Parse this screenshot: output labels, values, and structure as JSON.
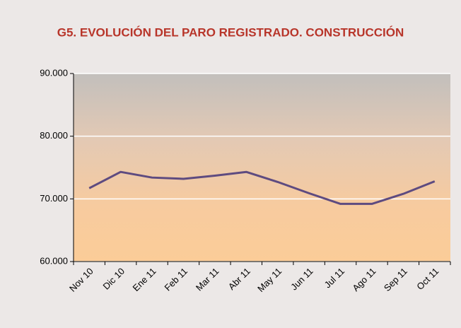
{
  "chart_data": {
    "type": "line",
    "title": "G5. EVOLUCIÓN DEL PARO REGISTRADO. CONSTRUCCIÓN",
    "categories": [
      "Nov 10",
      "Dic 10",
      "Ene 11",
      "Feb 11",
      "Mar 11",
      "Abr 11",
      "May 11",
      "Jun 11",
      "Jul 11",
      "Ago 11",
      "Sep 11",
      "Oct 11"
    ],
    "series": [
      {
        "name": "Paro registrado",
        "color": "#5e4b80",
        "values": [
          71700,
          74300,
          73400,
          73200,
          73700,
          74300,
          72700,
          70900,
          69200,
          69200,
          70800,
          72800
        ]
      }
    ],
    "ylim": [
      60000,
      90000
    ],
    "yticks": [
      {
        "value": 60000,
        "label": "60.000"
      },
      {
        "value": 70000,
        "label": "70.000"
      },
      {
        "value": 80000,
        "label": "80.000"
      },
      {
        "value": 90000,
        "label": "90.000"
      }
    ],
    "grid": true
  }
}
